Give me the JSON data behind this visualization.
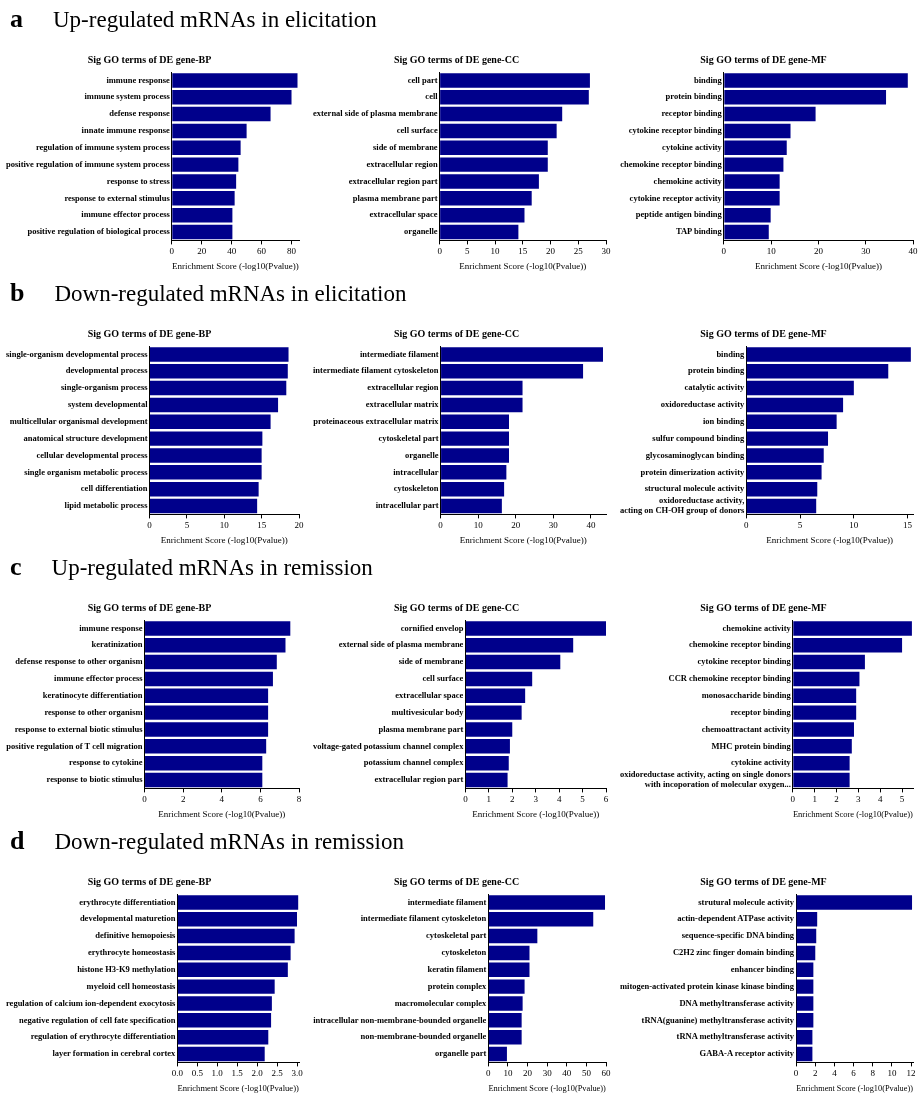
{
  "chart_data": [
    {
      "type": "bar",
      "orientation": "horizontal",
      "annotations": [
        "a",
        "Up-regulated mRNAs  in elicitation"
      ],
      "title": "Sig GO terms of DE gene-BP",
      "xlabel": "Enrichment Score (-log10(Pvalue))",
      "color": "#00008b",
      "grid": false,
      "legend": false,
      "xlim": [
        0,
        85
      ],
      "xticks": [
        0,
        20,
        40,
        60,
        80
      ],
      "categories": [
        "immune response",
        "immune system process",
        "defense response",
        "innate immune response",
        "regulation of immune system process",
        "positive regulation of immune system process",
        "response to stress",
        "response to external stimulus",
        "immune effector process",
        "positive regulation of biological process"
      ],
      "values": [
        84,
        80,
        66,
        50,
        46,
        44.5,
        43,
        42,
        40.5,
        40.5
      ]
    },
    {
      "type": "bar",
      "orientation": "horizontal",
      "title": "Sig GO terms of DE gene-CC",
      "xlabel": "Enrichment Score (-log10(Pvalue))",
      "color": "#00008b",
      "grid": false,
      "legend": false,
      "xlim": [
        0,
        30
      ],
      "xticks": [
        0,
        5,
        10,
        15,
        20,
        25,
        30
      ],
      "categories": [
        "cell part",
        "cell",
        "external side of plasma membrane",
        "cell surface",
        "side of membrane",
        "extracellular region",
        "extracellular region part",
        "plasma membrane part",
        "extracellular space",
        "organelle"
      ],
      "values": [
        27.1,
        26.9,
        22.1,
        21.1,
        19.5,
        19.5,
        17.9,
        16.6,
        15.3,
        14.2
      ]
    },
    {
      "type": "bar",
      "orientation": "horizontal",
      "title": "Sig GO terms of DE gene-MF",
      "xlabel": "Enrichment Score (-log10(Pvalue))",
      "color": "#00008b",
      "grid": false,
      "legend": false,
      "xlim": [
        0,
        40
      ],
      "xticks": [
        0,
        10,
        20,
        30,
        40
      ],
      "categories": [
        "binding",
        "protein binding",
        "receptor binding",
        "cytokine receptor binding",
        "cytokine activity",
        "chemokine receptor binding",
        "chemokine activity",
        "cytokine receptor activity",
        "peptide antigen binding",
        "TAP binding"
      ],
      "values": [
        38.9,
        34.3,
        19.4,
        14.1,
        13.3,
        12.6,
        11.8,
        11.8,
        9.9,
        9.5
      ]
    },
    {
      "type": "bar",
      "orientation": "horizontal",
      "annotations": [
        "b",
        "Down-regulated mRNAs  in elicitation"
      ],
      "title": "Sig GO terms of DE gene-BP",
      "xlabel": "Enrichment Score (-log10(Pvalue))",
      "color": "#00008b",
      "grid": false,
      "legend": false,
      "xlim": [
        0,
        20
      ],
      "xticks": [
        0,
        5,
        10,
        15,
        20
      ],
      "categories": [
        "single-organism developmental process",
        "developmental process",
        "single-organism process",
        "system developmental",
        "multicellular organismal development",
        "anatomical structure development",
        "cellular developmental process",
        "single organism metabolic process",
        "cell differentiation",
        "lipid metabolic process"
      ],
      "values": [
        18.6,
        18.5,
        18.3,
        17.2,
        16.2,
        15.1,
        15,
        15,
        14.6,
        14.4
      ]
    },
    {
      "type": "bar",
      "orientation": "horizontal",
      "title": "Sig GO terms of DE gene-CC",
      "xlabel": "Enrichment Score (-log10(Pvalue))",
      "color": "#00008b",
      "grid": false,
      "legend": false,
      "xlim": [
        0,
        44
      ],
      "xticks": [
        0,
        10,
        20,
        30,
        40
      ],
      "categories": [
        "intermediate filament",
        "intermediate filament cytoskeleton",
        "extracellular region",
        "extracellular matrix",
        "proteinaceous extracellular matrix",
        "cytoskeletal part",
        "organelle",
        "intracellular",
        "cytoskeleton",
        "intracellular part"
      ],
      "values": [
        43.2,
        37.9,
        21.8,
        21.8,
        18.2,
        18.2,
        18.2,
        17.5,
        16.9,
        16.3
      ]
    },
    {
      "type": "bar",
      "orientation": "horizontal",
      "title": "Sig GO terms of DE gene-MF",
      "xlabel": "Enrichment Score (-log10(Pvalue))",
      "color": "#00008b",
      "grid": false,
      "legend": false,
      "xlim": [
        0,
        15.5
      ],
      "xticks": [
        0,
        5,
        10,
        15
      ],
      "categories": [
        "binding",
        "protein binding",
        "catalytic activity",
        "oxidoreductase activity",
        "ion binding",
        "sulfur compound binding",
        "glycosaminoglycan binding",
        "protein dimerization activity",
        "structural molecule activity",
        "oxidoreductase activity,\nacting on CH-OH group of donors"
      ],
      "values": [
        15.3,
        13.2,
        10,
        9,
        8.4,
        7.6,
        7.2,
        7,
        6.6,
        6.5
      ]
    },
    {
      "type": "bar",
      "orientation": "horizontal",
      "annotations": [
        "c",
        "Up-regulated mRNAs  in remission"
      ],
      "title": "Sig GO terms of DE gene-BP",
      "xlabel": "Enrichment Score (-log10(Pvalue))",
      "color": "#00008b",
      "grid": false,
      "legend": false,
      "xlim": [
        0,
        8
      ],
      "xticks": [
        0,
        2,
        4,
        6,
        8
      ],
      "categories": [
        "immune response",
        "keratinization",
        "defense response to other organism",
        "immune effector process",
        "keratinocyte differentiation",
        "response to other organism",
        "response to external biotic stimulus",
        "positive regulation of T cell migration",
        "response to cytokine",
        "response to biotic stimulus"
      ],
      "values": [
        7.55,
        7.3,
        6.85,
        6.65,
        6.4,
        6.4,
        6.4,
        6.3,
        6.1,
        6.1
      ]
    },
    {
      "type": "bar",
      "orientation": "horizontal",
      "title": "Sig GO terms of DE gene-CC",
      "xlabel": "Enrichment Score (-log10(Pvalue))",
      "color": "#00008b",
      "grid": false,
      "legend": false,
      "xlim": [
        0,
        6
      ],
      "xticks": [
        0,
        1,
        2,
        3,
        4,
        5,
        6
      ],
      "categories": [
        "cornified envelop",
        "external side of plasma membrane",
        "side of membrane",
        "cell surface",
        "extracellular space",
        "multivesicular body",
        "plasma membrane part",
        "voltage-gated potassium channel complex",
        "potassium channel complex",
        "extracellular region part"
      ],
      "values": [
        6,
        4.6,
        4.05,
        2.85,
        2.55,
        2.4,
        2,
        1.9,
        1.85,
        1.8
      ]
    },
    {
      "type": "bar",
      "orientation": "horizontal",
      "title": "Sig GO terms of DE gene-MF",
      "xlabel": "Enrichment Score (-log10(Pvalue))",
      "color": "#00008b",
      "grid": false,
      "legend": false,
      "xlim": [
        0,
        5.5
      ],
      "xticks": [
        0,
        1,
        2,
        3,
        4,
        5
      ],
      "categories": [
        "chemokine activity",
        "chemokine receptor binding",
        "cytokine receptor binding",
        "CCR chemokine receptor binding",
        "monosaccharide binding",
        "receptor binding",
        "chemoattractant activity",
        "MHC protein binding",
        "cytokine activity",
        "oxidoreductase activity, acting on single donors\nwith incoporation of molecular oxygen..."
      ],
      "values": [
        5.45,
        5,
        3.3,
        3.05,
        2.9,
        2.9,
        2.8,
        2.7,
        2.6,
        2.6
      ]
    },
    {
      "type": "bar",
      "orientation": "horizontal",
      "annotations": [
        "d",
        "Down-regulated mRNAs  in remission"
      ],
      "title": "Sig GO terms of DE gene-BP",
      "xlabel": "Enrichment Score (-log10(Pvalue))",
      "color": "#00008b",
      "grid": false,
      "legend": false,
      "xlim": [
        0,
        3.05
      ],
      "xticks": [
        {
          "value": 0,
          "label": "0.0"
        },
        {
          "value": 0.5,
          "label": "0.5"
        },
        {
          "value": 1,
          "label": "1.0"
        },
        {
          "value": 1.5,
          "label": "1.5"
        },
        {
          "value": 2,
          "label": "2.0"
        },
        {
          "value": 2.5,
          "label": "2.5"
        },
        {
          "value": 3,
          "label": "3.0"
        }
      ],
      "categories": [
        "erythrocyte differentiation",
        "developmental maturetion",
        "definitive hemopoiesis",
        "erythrocyte homeostasis",
        "histone H3-K9 methylation",
        "myeloid cell homeostasis",
        "regulation of calcium ion-dependent exocytosis",
        "negative regulation of cell fate specification",
        "regulation of erythrocyte differentiation",
        "layer formation in cerebral cortex"
      ],
      "values": [
        3.03,
        3,
        2.94,
        2.84,
        2.77,
        2.44,
        2.37,
        2.35,
        2.28,
        2.19
      ]
    },
    {
      "type": "bar",
      "orientation": "horizontal",
      "title": "Sig GO terms of DE gene-CC",
      "xlabel": "Enrichment Score (-log10(Pvalue))",
      "color": "#00008b",
      "grid": false,
      "legend": false,
      "xlim": [
        0,
        60
      ],
      "xticks": [
        0,
        10,
        20,
        30,
        40,
        50,
        60
      ],
      "categories": [
        "intermediate filament",
        "intermediate filament cytoskeleton",
        "cytoskeletal part",
        "cytoskeleton",
        "keratin filament",
        "protein complex",
        "macromolecular complex",
        "intracellular non-membrane-bounded organelle",
        "non-membrane-bounded organelle",
        "organelle part"
      ],
      "values": [
        59.5,
        53.5,
        25,
        21,
        21,
        18.5,
        17.5,
        17,
        17,
        9.5
      ]
    },
    {
      "type": "bar",
      "orientation": "horizontal",
      "title": "Sig GO terms of DE gene-MF",
      "xlabel": "Enrichment Score (-log10(Pvalue))",
      "color": "#00008b",
      "grid": false,
      "legend": false,
      "xlim": [
        0,
        12.2
      ],
      "xticks": [
        0,
        2,
        4,
        6,
        8,
        10,
        12
      ],
      "categories": [
        "strutural molecule activity",
        "actin-dependent ATPase activity",
        "sequence-specific DNA binding",
        "C2H2 zinc finger domain binding",
        "enhancer binding",
        "mitogen-activated protein kinase kinase binding",
        "DNA methyltransferase activity",
        "tRNA(guanine) methyltransferase activity",
        "tRNA methyltransferase activity",
        "GABA-A receptor activity"
      ],
      "values": [
        12.1,
        2.2,
        2.1,
        2,
        1.8,
        1.8,
        1.8,
        1.8,
        1.7,
        1.7
      ]
    }
  ]
}
